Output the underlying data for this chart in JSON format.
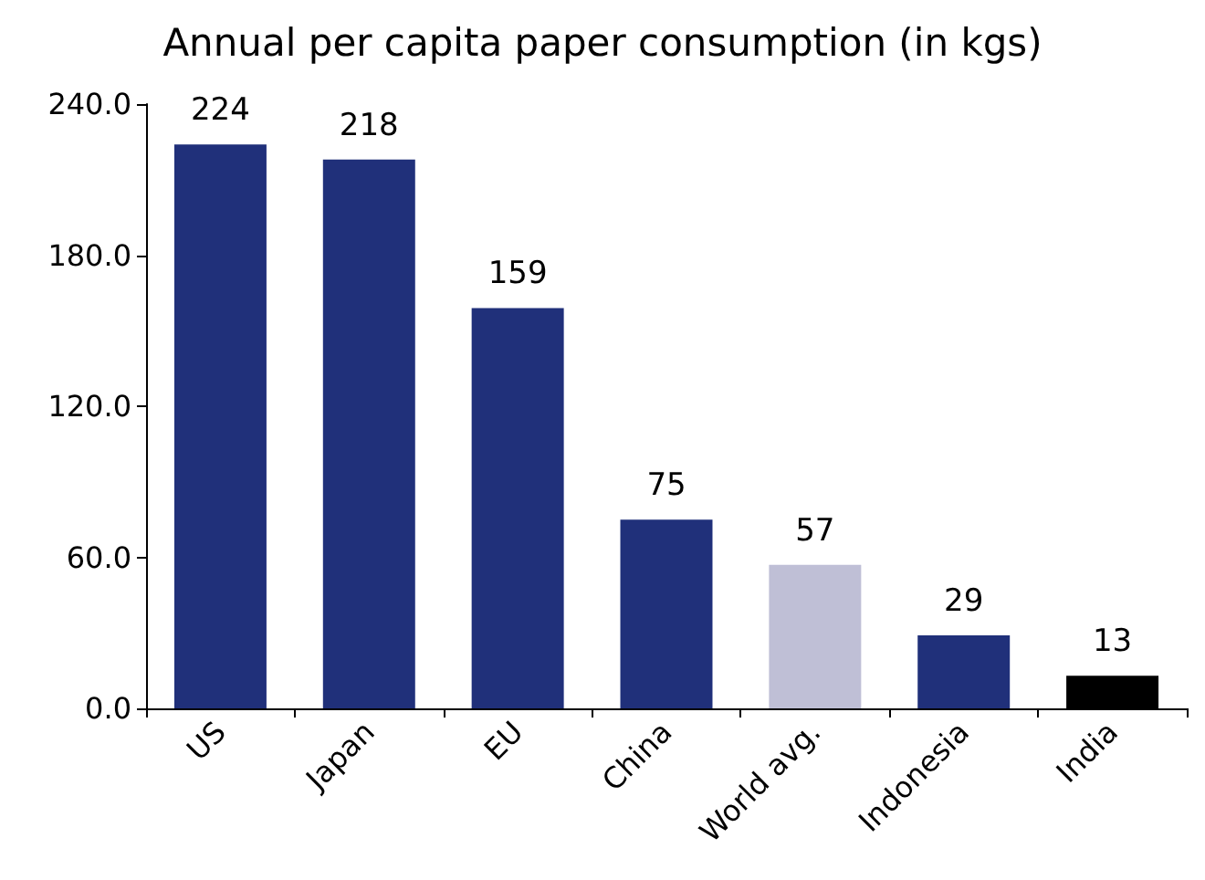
{
  "chart_data": {
    "type": "bar",
    "title": "Annual per capita paper consumption (in kgs)",
    "categories": [
      "US",
      "Japan",
      "EU",
      "China",
      "World avg.",
      "Indonesia",
      "India"
    ],
    "values": [
      224,
      218,
      159,
      75,
      57,
      29,
      13
    ],
    "colors": [
      "#20307a",
      "#20307a",
      "#20307a",
      "#20307a",
      "#bfbfd6",
      "#20307a",
      "#000000"
    ],
    "ylim": [
      0,
      240
    ],
    "yticks": [
      {
        "value": 0,
        "label": "0.0"
      },
      {
        "value": 60,
        "label": "60.0"
      },
      {
        "value": 120,
        "label": "120.0"
      },
      {
        "value": 180,
        "label": "180.0"
      },
      {
        "value": 240,
        "label": "240.0"
      }
    ],
    "data_labels": true
  }
}
